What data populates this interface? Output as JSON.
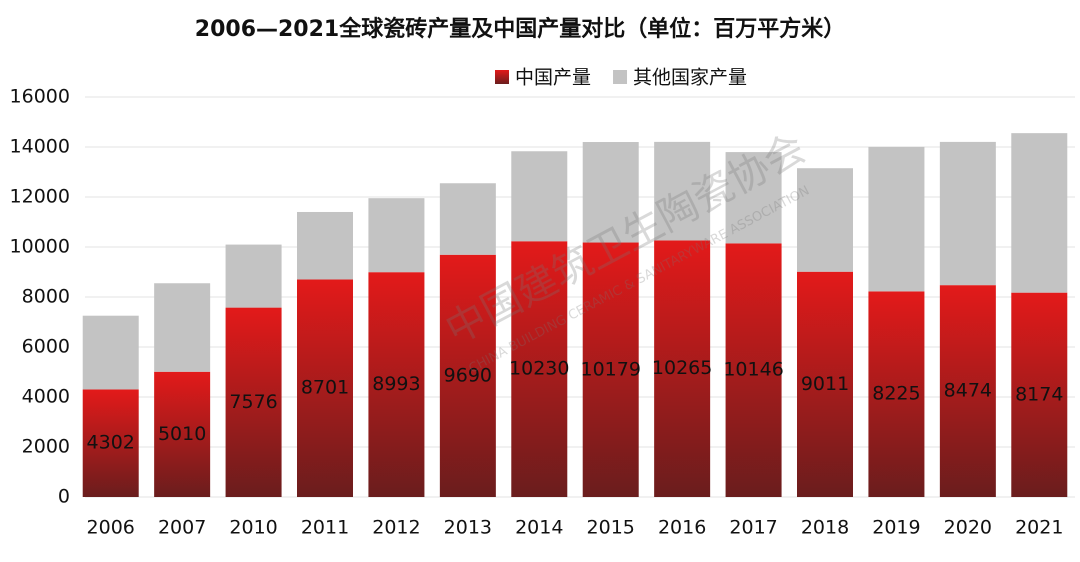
{
  "chart_data": {
    "type": "stacked_bar",
    "title": "2006—2021全球瓷砖产量及中国产量对比（单位：百万平方米）",
    "watermark": "中国建筑卫生陶瓷协会",
    "watermark_en": "CHINA BUILDING CERAMIC & SANITARYWARE ASSOCIATION",
    "categories": [
      "2006",
      "2007",
      "2010",
      "2011",
      "2012",
      "2013",
      "2014",
      "2015",
      "2016",
      "2017",
      "2018",
      "2019",
      "2020",
      "2021"
    ],
    "series": [
      {
        "name": "中国产量",
        "color": "#e31a1a",
        "values": [
          4302,
          5010,
          7576,
          8701,
          8993,
          9690,
          10230,
          10179,
          10265,
          10146,
          9011,
          8225,
          8474,
          8174
        ],
        "data_labels": true
      },
      {
        "name": "其他国家产量",
        "color": "#c3c3c3",
        "values": [
          2950,
          3540,
          2520,
          2700,
          2960,
          2860,
          3600,
          4020,
          3940,
          3650,
          4140,
          5780,
          5730,
          6380
        ],
        "data_labels": false
      }
    ],
    "ylim": [
      0,
      16000
    ],
    "yticks": [
      0,
      2000,
      4000,
      6000,
      8000,
      10000,
      12000,
      14000,
      16000
    ],
    "grid": true,
    "legend": "top"
  }
}
